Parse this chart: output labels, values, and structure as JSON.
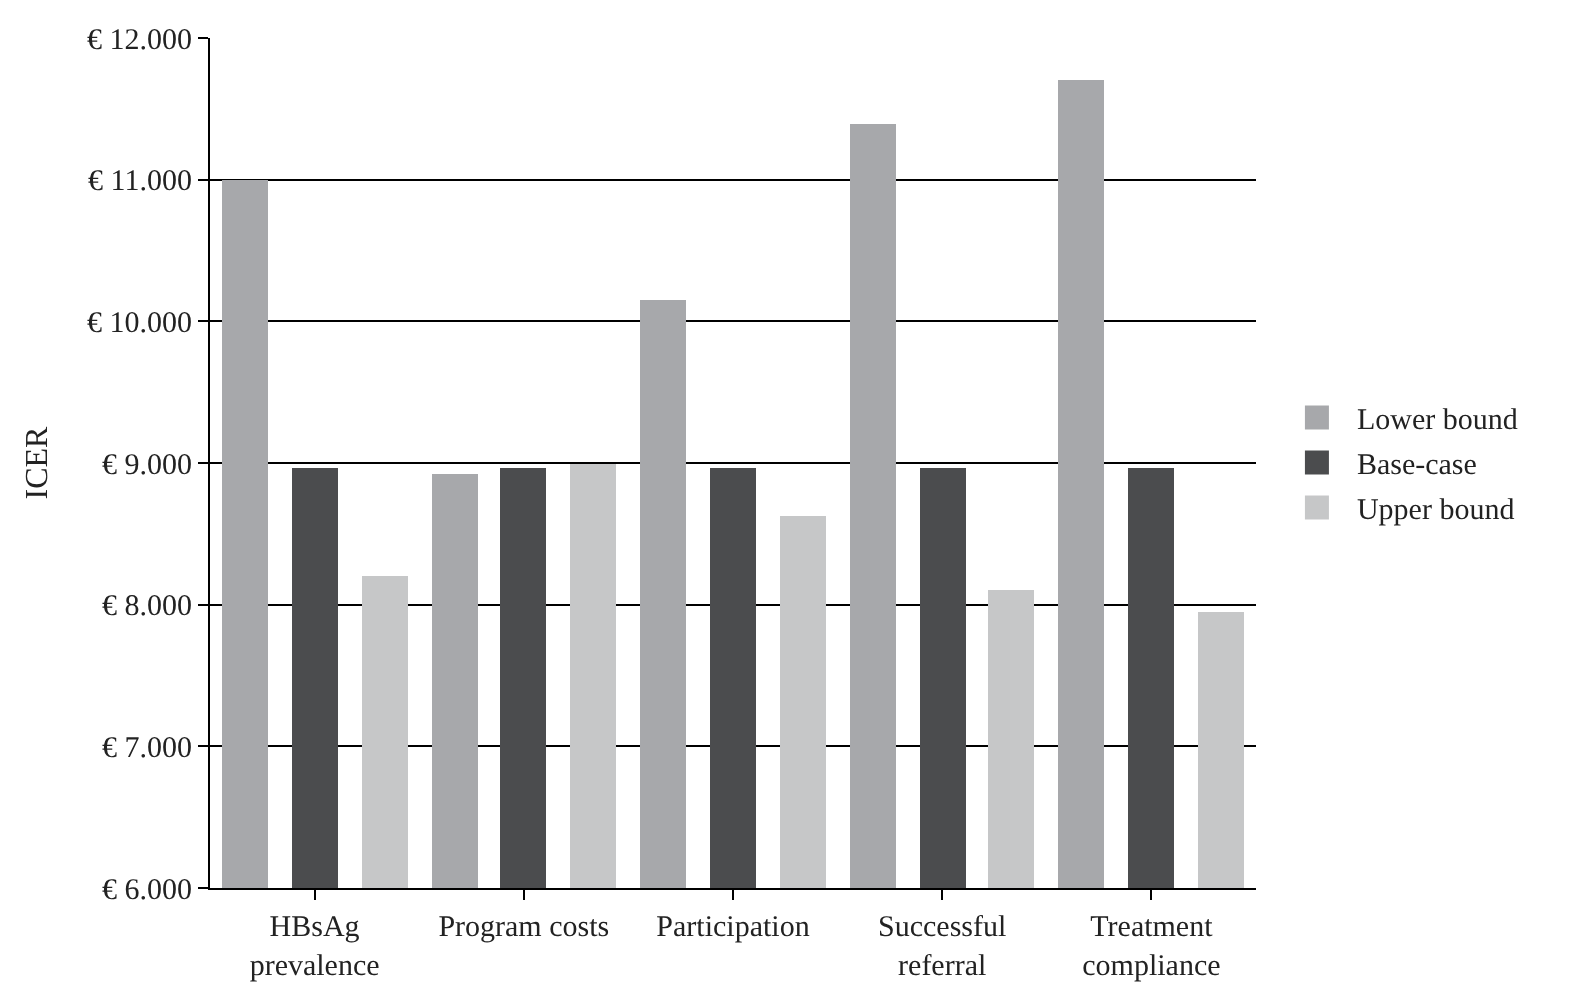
{
  "chart_data": {
    "type": "bar",
    "ylabel": "ICER",
    "categories": [
      "HBsAg\nprevalence",
      "Program costs",
      "Participation",
      "Successful\nreferral",
      "Treatment\ncompliance"
    ],
    "series": [
      {
        "name": "Lower bound",
        "color": "#a7a8ab",
        "values": [
          11000,
          8920,
          10150,
          11400,
          11700
        ]
      },
      {
        "name": "Base-case",
        "color": "#4b4c4e",
        "values": [
          8960,
          8960,
          8960,
          8960,
          8960
        ]
      },
      {
        "name": "Upper bound",
        "color": "#c6c7c8",
        "values": [
          8200,
          9000,
          8620,
          8100,
          7950
        ]
      }
    ],
    "ylim": [
      6000,
      12000
    ],
    "yticks": [
      {
        "value": 6000,
        "label": "€ 6.000"
      },
      {
        "value": 7000,
        "label": "€ 7.000"
      },
      {
        "value": 8000,
        "label": "€ 8.000"
      },
      {
        "value": 9000,
        "label": "€ 9.000"
      },
      {
        "value": 10000,
        "label": "€ 10.000"
      },
      {
        "value": 11000,
        "label": "€ 11.000"
      },
      {
        "value": 12000,
        "label": "€ 12.000"
      }
    ],
    "grid": "y",
    "legend": "right"
  }
}
